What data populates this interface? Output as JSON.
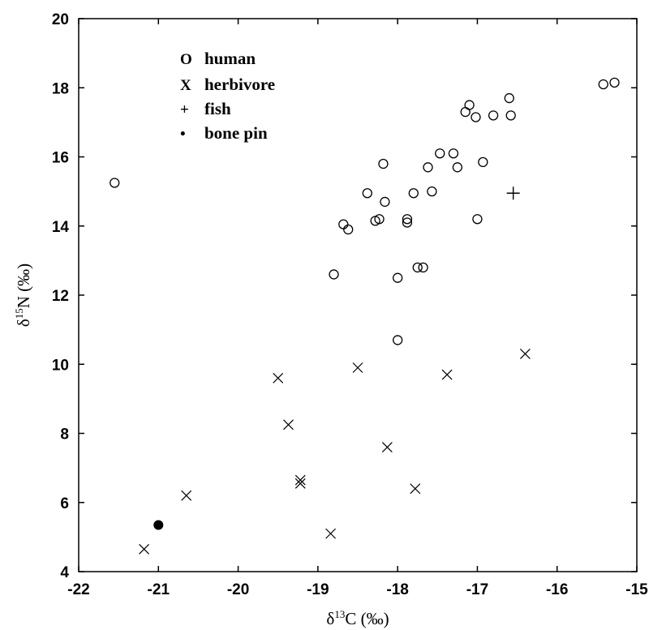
{
  "chart_data": {
    "type": "scatter",
    "title": "",
    "xlabel": "δ¹³C (‰)",
    "ylabel": "δ¹⁵N (‰)",
    "xlabel_parts": {
      "delta": "δ",
      "sup": "13",
      "rest": "C (‰)"
    },
    "ylabel_parts": {
      "delta": "δ",
      "sup": "15",
      "rest": "N (‰)"
    },
    "xlim": [
      -22,
      -15
    ],
    "ylim": [
      4,
      20
    ],
    "xticks": [
      "-22",
      "-21",
      "-20",
      "-19",
      "-18",
      "-17",
      "-16",
      "-15"
    ],
    "yticks": [
      "4",
      "6",
      "8",
      "10",
      "12",
      "14",
      "16",
      "18",
      "20"
    ],
    "grid": false,
    "legend_position": "top-left",
    "legend": [
      {
        "symbol": "O",
        "label": "human",
        "marker": "circle"
      },
      {
        "symbol": "X",
        "label": "herbivore",
        "marker": "x"
      },
      {
        "symbol": "+",
        "label": "fish",
        "marker": "plus"
      },
      {
        "symbol": "•",
        "label": "bone pin",
        "marker": "dot"
      }
    ],
    "series": [
      {
        "name": "human",
        "marker": "circle",
        "points": [
          [
            -21.55,
            15.25
          ],
          [
            -18.8,
            12.6
          ],
          [
            -18.68,
            14.05
          ],
          [
            -18.62,
            13.9
          ],
          [
            -18.38,
            14.95
          ],
          [
            -18.28,
            14.15
          ],
          [
            -18.23,
            14.2
          ],
          [
            -18.18,
            15.8
          ],
          [
            -18.16,
            14.7
          ],
          [
            -18.0,
            12.5
          ],
          [
            -18.0,
            10.7
          ],
          [
            -17.88,
            14.1
          ],
          [
            -17.88,
            14.2
          ],
          [
            -17.8,
            14.95
          ],
          [
            -17.75,
            12.8
          ],
          [
            -17.68,
            12.8
          ],
          [
            -17.62,
            15.7
          ],
          [
            -17.57,
            15.0
          ],
          [
            -17.47,
            16.1
          ],
          [
            -17.3,
            16.1
          ],
          [
            -17.25,
            15.7
          ],
          [
            -17.15,
            17.3
          ],
          [
            -17.1,
            17.5
          ],
          [
            -17.02,
            17.15
          ],
          [
            -17.0,
            14.2
          ],
          [
            -16.93,
            15.85
          ],
          [
            -16.8,
            17.2
          ],
          [
            -16.6,
            17.7
          ],
          [
            -16.58,
            17.2
          ],
          [
            -15.42,
            18.1
          ],
          [
            -15.28,
            18.15
          ]
        ]
      },
      {
        "name": "herbivore",
        "marker": "x",
        "points": [
          [
            -21.18,
            4.65
          ],
          [
            -20.65,
            6.2
          ],
          [
            -19.5,
            9.6
          ],
          [
            -19.37,
            8.25
          ],
          [
            -19.22,
            6.65
          ],
          [
            -19.22,
            6.55
          ],
          [
            -18.84,
            5.1
          ],
          [
            -18.5,
            9.9
          ],
          [
            -18.13,
            7.6
          ],
          [
            -17.78,
            6.4
          ],
          [
            -17.38,
            9.7
          ],
          [
            -16.4,
            10.3
          ]
        ]
      },
      {
        "name": "fish",
        "marker": "plus",
        "points": [
          [
            -16.55,
            14.95
          ]
        ]
      },
      {
        "name": "bone pin",
        "marker": "dot",
        "points": [
          [
            -21.0,
            5.35
          ]
        ]
      }
    ]
  }
}
